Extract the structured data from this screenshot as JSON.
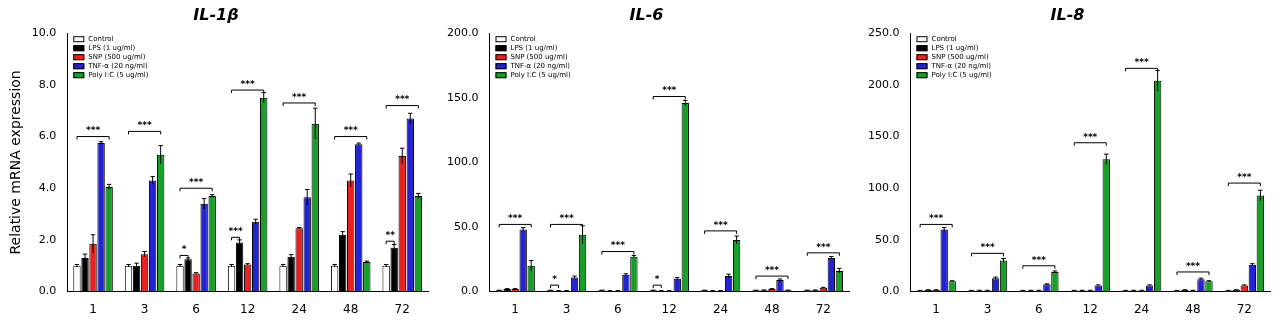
{
  "chart_data": [
    {
      "type": "bar",
      "title": "IL-1β",
      "y_label": "Relative mRNA expression",
      "categories": [
        "1",
        "3",
        "6",
        "12",
        "24",
        "48",
        "72"
      ],
      "series": [
        {
          "name": "Control",
          "color": "#ffffff",
          "values": [
            1.0,
            1.0,
            1.0,
            1.0,
            1.0,
            1.0,
            1.0
          ],
          "errors": [
            0.05,
            0.05,
            0.05,
            0.05,
            0.05,
            0.05,
            0.05
          ]
        },
        {
          "name": "LPS (1 ug/ml)",
          "color": "#000000",
          "values": [
            1.3,
            1.0,
            1.25,
            1.9,
            1.35,
            2.2,
            1.7
          ],
          "errors": [
            0.15,
            0.1,
            0.05,
            0.1,
            0.08,
            0.12,
            0.12
          ]
        },
        {
          "name": "SNP (500 ug/ml)",
          "color": "#e8231f",
          "values": [
            1.85,
            1.45,
            0.7,
            1.05,
            2.45,
            4.3,
            5.25
          ],
          "errors": [
            0.35,
            0.1,
            0.03,
            0.03,
            0.03,
            0.25,
            0.3
          ]
        },
        {
          "name": "TNF-α (20 ng/ml)",
          "color": "#2323d4",
          "values": [
            5.75,
            4.3,
            3.4,
            2.7,
            3.65,
            5.7,
            6.7
          ],
          "errors": [
            0.05,
            0.15,
            0.2,
            0.1,
            0.3,
            0.05,
            0.2
          ]
        },
        {
          "name": "Poly I:C (5 ug/ml)",
          "color": "#1a9e2a",
          "values": [
            4.05,
            5.3,
            3.7,
            7.5,
            6.5,
            1.15,
            3.7
          ],
          "errors": [
            0.1,
            0.35,
            0.05,
            0.2,
            0.6,
            0.03,
            0.1
          ]
        }
      ],
      "ylim": [
        0,
        10
      ],
      "yticks": [
        {
          "value": 0,
          "label": "0.0"
        },
        {
          "value": 2,
          "label": "2.0"
        },
        {
          "value": 4,
          "label": "4.0"
        },
        {
          "value": 6,
          "label": "6.0"
        },
        {
          "value": 8,
          "label": "8.0"
        },
        {
          "value": 10,
          "label": "10.0"
        }
      ],
      "grid": false,
      "legend": "top-left",
      "annotations": [
        {
          "category": "1",
          "text": "***",
          "y": 6.0,
          "from": "Control",
          "to": "Poly I:C (5 ug/ml)"
        },
        {
          "category": "3",
          "text": "***",
          "y": 6.2,
          "from": "Control",
          "to": "Poly I:C (5 ug/ml)"
        },
        {
          "category": "6",
          "text": "*",
          "y": 1.4,
          "from": "Control",
          "to": "LPS (1 ug/ml)"
        },
        {
          "category": "6",
          "text": "***",
          "y": 4.0,
          "from": "Control",
          "to": "Poly I:C (5 ug/ml)"
        },
        {
          "category": "12",
          "text": "***",
          "y": 2.1,
          "from": "Control",
          "to": "LPS (1 ug/ml)"
        },
        {
          "category": "12",
          "text": "***",
          "y": 7.8,
          "from": "Control",
          "to": "Poly I:C (5 ug/ml)"
        },
        {
          "category": "24",
          "text": "***",
          "y": 7.3,
          "from": "Control",
          "to": "Poly I:C (5 ug/ml)"
        },
        {
          "category": "48",
          "text": "***",
          "y": 6.0,
          "from": "Control",
          "to": "Poly I:C (5 ug/ml)"
        },
        {
          "category": "72",
          "text": "**",
          "y": 1.95,
          "from": "Control",
          "to": "LPS (1 ug/ml)"
        },
        {
          "category": "72",
          "text": "***",
          "y": 7.2,
          "from": "Control",
          "to": "Poly I:C (5 ug/ml)"
        }
      ]
    },
    {
      "type": "bar",
      "title": "IL-6",
      "categories": [
        "1",
        "3",
        "6",
        "12",
        "24",
        "48",
        "72"
      ],
      "series": [
        {
          "name": "Control",
          "color": "#ffffff",
          "values": [
            1,
            1,
            1,
            1,
            1,
            1,
            1
          ],
          "errors": [
            0.1,
            0.1,
            0.1,
            0.1,
            0.1,
            0.1,
            0.1
          ]
        },
        {
          "name": "LPS (1 ug/ml)",
          "color": "#000000",
          "values": [
            2,
            0.5,
            0.5,
            0.5,
            0.5,
            1,
            1
          ],
          "errors": [
            0.3,
            0.3,
            0.3,
            0.3,
            0.3,
            0.3,
            0.3
          ]
        },
        {
          "name": "SNP (500 ug/ml)",
          "color": "#e8231f",
          "values": [
            2,
            0.5,
            0.5,
            0.5,
            0.5,
            2,
            3
          ],
          "errors": [
            0.3,
            0.3,
            0.3,
            0.3,
            0.3,
            0.3,
            0.3
          ]
        },
        {
          "name": "TNF-α (20 ng/ml)",
          "color": "#2323d4",
          "values": [
            48,
            11,
            13,
            10,
            12,
            9,
            26
          ],
          "errors": [
            1.5,
            1,
            0.8,
            0.8,
            1.5,
            0.8,
            1.2
          ]
        },
        {
          "name": "Poly I:C (5 ug/ml)",
          "color": "#1a9e2a",
          "values": [
            20,
            44,
            27,
            146,
            40,
            1,
            16
          ],
          "errors": [
            4,
            7,
            1,
            2,
            3,
            0.2,
            2
          ]
        }
      ],
      "ylim": [
        0,
        200
      ],
      "yticks": [
        {
          "value": 0,
          "label": "0.0"
        },
        {
          "value": 50,
          "label": "50.0"
        },
        {
          "value": 100,
          "label": "100.0"
        },
        {
          "value": 150,
          "label": "150.0"
        },
        {
          "value": 200,
          "label": "200.0"
        }
      ],
      "grid": false,
      "legend": "top-left",
      "annotations": [
        {
          "category": "1",
          "text": "***",
          "y": 52,
          "from": "Control",
          "to": "Poly I:C (5 ug/ml)"
        },
        {
          "category": "3",
          "text": "*",
          "y": 5,
          "from": "Control",
          "to": "LPS (1 ug/ml)"
        },
        {
          "category": "3",
          "text": "***",
          "y": 52,
          "from": "Control",
          "to": "Poly I:C (5 ug/ml)"
        },
        {
          "category": "6",
          "text": "***",
          "y": 31,
          "from": "Control",
          "to": "Poly I:C (5 ug/ml)"
        },
        {
          "category": "12",
          "text": "*",
          "y": 5,
          "from": "Control",
          "to": "LPS (1 ug/ml)"
        },
        {
          "category": "12",
          "text": "***",
          "y": 151,
          "from": "Control",
          "to": "Poly I:C (5 ug/ml)"
        },
        {
          "category": "24",
          "text": "***",
          "y": 47,
          "from": "Control",
          "to": "Poly I:C (5 ug/ml)"
        },
        {
          "category": "48",
          "text": "***",
          "y": 12,
          "from": "Control",
          "to": "Poly I:C (5 ug/ml)"
        },
        {
          "category": "72",
          "text": "***",
          "y": 30,
          "from": "Control",
          "to": "Poly I:C (5 ug/ml)"
        }
      ]
    },
    {
      "type": "bar",
      "title": "IL-8",
      "categories": [
        "1",
        "3",
        "6",
        "12",
        "24",
        "48",
        "72"
      ],
      "series": [
        {
          "name": "Control",
          "color": "#ffffff",
          "values": [
            1,
            1,
            1,
            1,
            1,
            1,
            1
          ],
          "errors": [
            0.2,
            0.2,
            0.2,
            0.2,
            0.2,
            0.2,
            0.2
          ]
        },
        {
          "name": "LPS (1 ug/ml)",
          "color": "#000000",
          "values": [
            1.5,
            1,
            1,
            1,
            1,
            1.5,
            1.5
          ],
          "errors": [
            0.3,
            0.3,
            0.3,
            0.3,
            0.3,
            0.3,
            0.3
          ]
        },
        {
          "name": "SNP (500 ug/ml)",
          "color": "#e8231f",
          "values": [
            1.5,
            1,
            1,
            1,
            1,
            1,
            6
          ],
          "errors": [
            0.3,
            0.3,
            0.3,
            0.3,
            0.3,
            0.3,
            0.5
          ]
        },
        {
          "name": "TNF-α (20 ng/ml)",
          "color": "#2323d4",
          "values": [
            60,
            13,
            7,
            6,
            6,
            12,
            26
          ],
          "errors": [
            2,
            1,
            0.5,
            0.5,
            0.5,
            1,
            1
          ]
        },
        {
          "name": "Poly I:C (5 ug/ml)",
          "color": "#1a9e2a",
          "values": [
            10,
            30,
            19,
            128,
            204,
            10,
            93
          ],
          "errors": [
            0.5,
            2,
            1,
            5,
            10,
            0.5,
            5
          ]
        }
      ],
      "ylim": [
        0,
        250
      ],
      "yticks": [
        {
          "value": 0,
          "label": "0.0"
        },
        {
          "value": 50,
          "label": "50.0"
        },
        {
          "value": 100,
          "label": "100.0"
        },
        {
          "value": 150,
          "label": "150.0"
        },
        {
          "value": 200,
          "label": "200.0"
        },
        {
          "value": 250,
          "label": "250.0"
        }
      ],
      "grid": false,
      "legend": "top-left",
      "annotations": [
        {
          "category": "1",
          "text": "***",
          "y": 65,
          "from": "Control",
          "to": "Poly I:C (5 ug/ml)"
        },
        {
          "category": "3",
          "text": "***",
          "y": 37,
          "from": "Control",
          "to": "Poly I:C (5 ug/ml)"
        },
        {
          "category": "6",
          "text": "***",
          "y": 25,
          "from": "Control",
          "to": "Poly I:C (5 ug/ml)"
        },
        {
          "category": "12",
          "text": "***",
          "y": 144,
          "from": "Control",
          "to": "Poly I:C (5 ug/ml)"
        },
        {
          "category": "24",
          "text": "***",
          "y": 216,
          "from": "Control",
          "to": "Poly I:C (5 ug/ml)"
        },
        {
          "category": "48",
          "text": "***",
          "y": 19,
          "from": "Control",
          "to": "Poly I:C (5 ug/ml)"
        },
        {
          "category": "72",
          "text": "***",
          "y": 105,
          "from": "Control",
          "to": "Poly I:C (5 ug/ml)"
        }
      ]
    }
  ]
}
